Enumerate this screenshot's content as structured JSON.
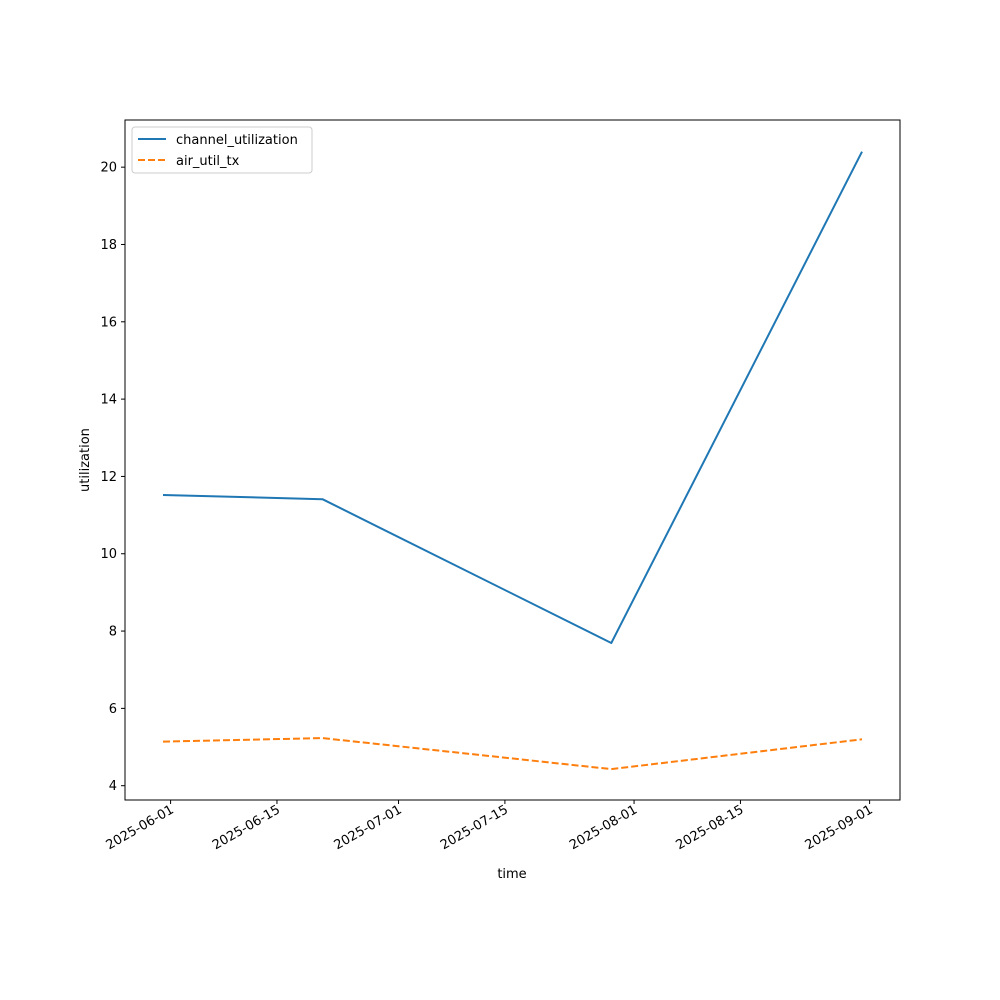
{
  "chart_data": {
    "type": "line",
    "xlabel": "time",
    "ylabel": "utilization",
    "x": [
      "2025-05-31",
      "2025-06-21",
      "2025-07-29",
      "2025-08-31"
    ],
    "series": [
      {
        "name": "channel_utilization",
        "values": [
          11.52,
          11.41,
          7.69,
          20.4
        ],
        "color": "#1f77b4",
        "style": "solid"
      },
      {
        "name": "air_util_tx",
        "values": [
          5.14,
          5.23,
          4.43,
          5.2
        ],
        "color": "#ff7f0e",
        "style": "dashed"
      }
    ],
    "x_ticks": [
      "2025-06-01",
      "2025-06-15",
      "2025-07-01",
      "2025-07-15",
      "2025-08-01",
      "2025-08-15",
      "2025-09-01"
    ],
    "y_ticks": [
      4,
      6,
      8,
      10,
      12,
      14,
      16,
      18,
      20
    ],
    "xlim": [
      "2025-05-26",
      "2025-09-05"
    ],
    "ylim": [
      3.63,
      21.22
    ],
    "legend": "top-left",
    "grid": false
  }
}
